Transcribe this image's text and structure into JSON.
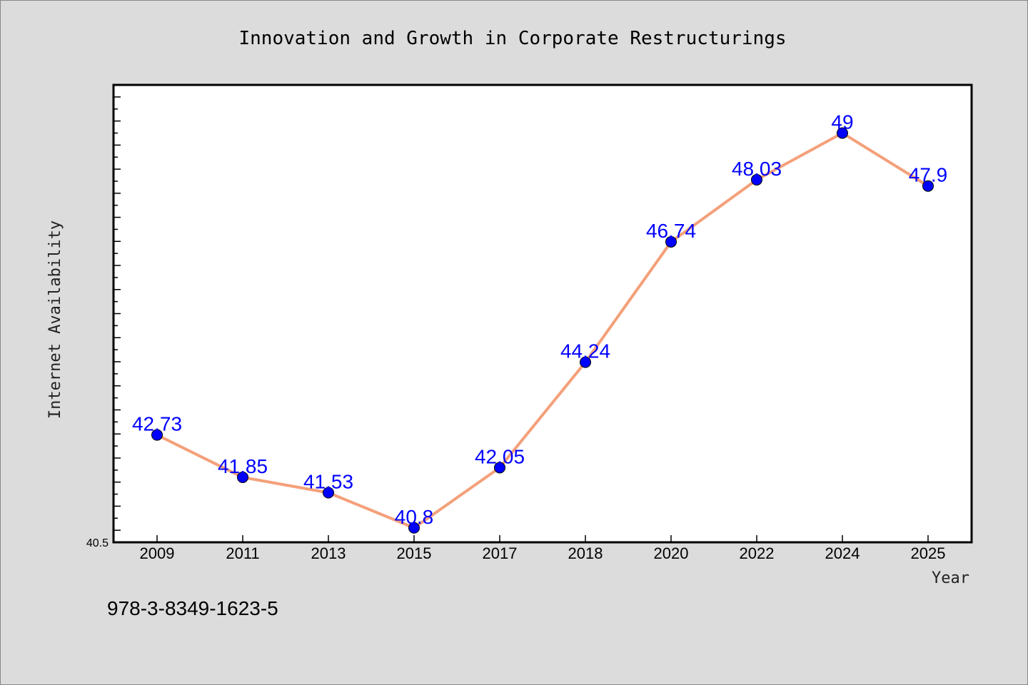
{
  "chart_data": {
    "type": "line",
    "title": "Innovation and Growth in Corporate Restructurings",
    "xlabel": "Year",
    "ylabel": "Internet Availability",
    "categories": [
      "2009",
      "2011",
      "2013",
      "2015",
      "2017",
      "2018",
      "2020",
      "2022",
      "2024",
      "2025"
    ],
    "series": [
      {
        "values": [
          42.73,
          41.85,
          41.53,
          40.8,
          42.05,
          44.24,
          46.74,
          48.03,
          49,
          47.9
        ]
      }
    ],
    "data_labels": [
      "42.73",
      "41.85",
      "41.53",
      "40.8",
      "42.05",
      "44.24",
      "46.74",
      "48.03",
      "49",
      "47.9"
    ],
    "ylim": [
      40.5,
      50
    ],
    "ytick_label": "40.5",
    "grid": false,
    "legend": "none",
    "line_color": "#f4a07a",
    "marker_color": "#0000ff",
    "label_color": "#0000ff"
  },
  "footer": {
    "isbn": "978-3-8349-1623-5"
  }
}
